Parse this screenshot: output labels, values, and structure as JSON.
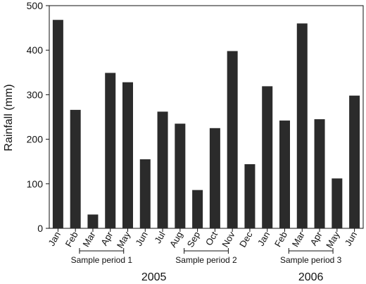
{
  "chart_data": {
    "type": "bar",
    "ylabel": "Rainfall (mm)",
    "ylim": [
      0,
      500
    ],
    "yticks": [
      0,
      100,
      200,
      300,
      400,
      500
    ],
    "grid": false,
    "bar_color": "#2b2b2b",
    "categories": [
      "Jan",
      "Feb",
      "Mar",
      "Apr",
      "May",
      "Jun",
      "Jul",
      "Aug",
      "Sep",
      "Oct",
      "Nov",
      "Dec",
      "Jan",
      "Feb",
      "Mar",
      "Apr",
      "May",
      "Jun"
    ],
    "values": [
      468,
      266,
      31,
      349,
      328,
      155,
      262,
      235,
      86,
      225,
      398,
      144,
      319,
      242,
      460,
      245,
      112,
      298
    ],
    "year_labels": [
      {
        "label": "2005",
        "start_index": 0,
        "end_index": 11
      },
      {
        "label": "2006",
        "start_index": 12,
        "end_index": 17
      }
    ],
    "sample_periods": [
      {
        "label": "Sample period 1",
        "start_index": 2,
        "end_index": 3
      },
      {
        "label": "Sample period 2",
        "start_index": 8,
        "end_index": 9
      },
      {
        "label": "Sample period 3",
        "start_index": 14,
        "end_index": 15
      }
    ]
  }
}
